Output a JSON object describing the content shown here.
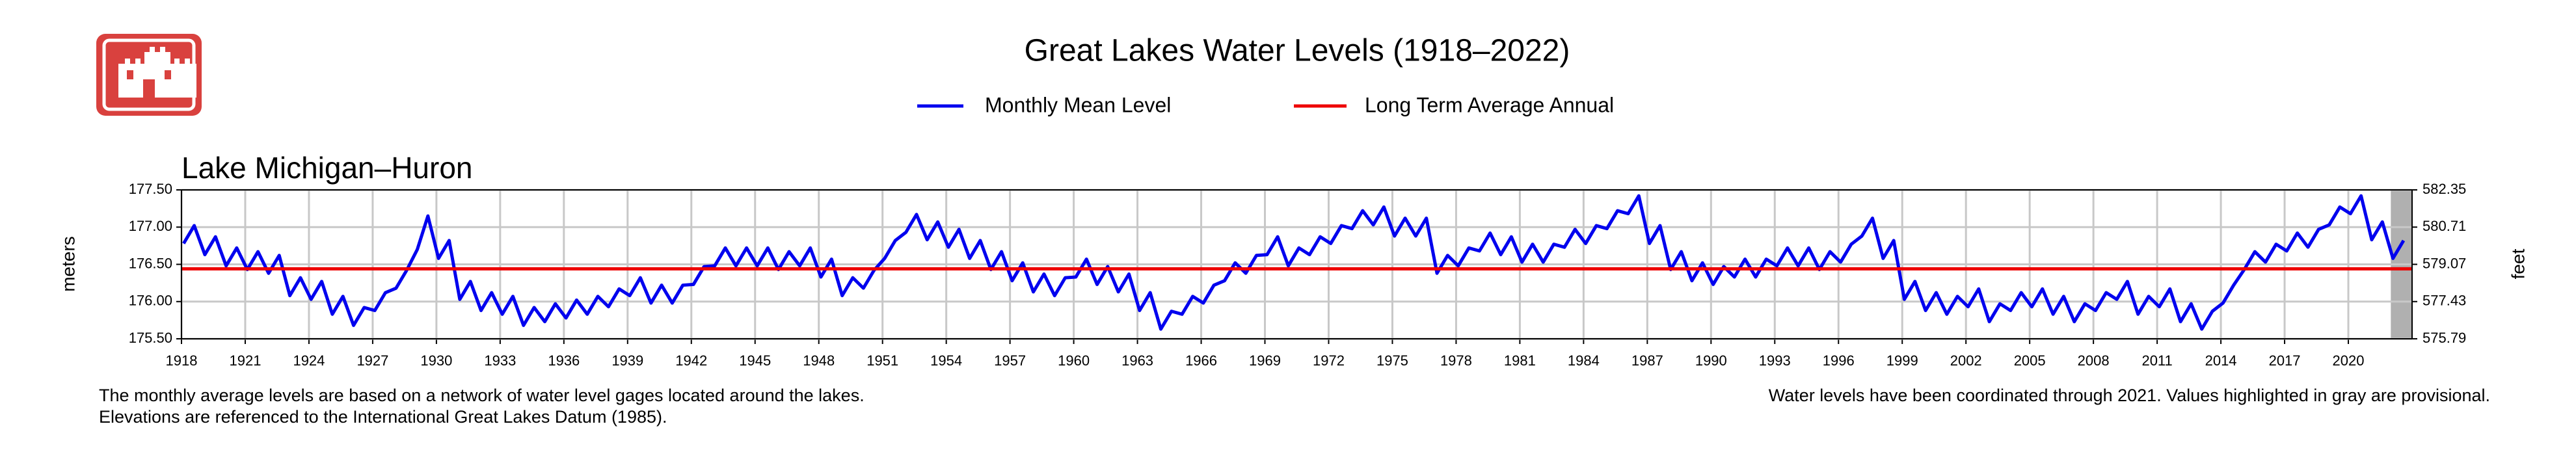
{
  "chart_data": {
    "type": "line",
    "title": "Great Lakes Water Levels (1918–2022)",
    "subtitle": "Lake Michigan–Huron",
    "ylabel": "meters",
    "y2label": "feet",
    "notes_left": [
      "The monthly average levels are based on a network of water level gages located around the lakes.",
      "Elevations are referenced to the International Great Lakes Datum (1985)."
    ],
    "note_right": "Water levels have been coordinated through 2021. Values highlighted in gray are provisional.",
    "xlim": [
      1918,
      2023
    ],
    "xticks": [
      1918,
      1921,
      1924,
      1927,
      1930,
      1933,
      1936,
      1939,
      1942,
      1945,
      1948,
      1951,
      1954,
      1957,
      1960,
      1963,
      1966,
      1969,
      1972,
      1975,
      1978,
      1981,
      1984,
      1987,
      1990,
      1993,
      1996,
      1999,
      2002,
      2005,
      2008,
      2011,
      2014,
      2017,
      2020
    ],
    "ylim": [
      175.5,
      177.5
    ],
    "yticks": [
      {
        "value": 175.5,
        "label": "175.50"
      },
      {
        "value": 176,
        "label": "176.00"
      },
      {
        "value": 176.5,
        "label": "176.50"
      },
      {
        "value": 177,
        "label": "177.00"
      },
      {
        "value": 177.5,
        "label": "177.50"
      }
    ],
    "y2lim": [
      575.79,
      582.35
    ],
    "y2ticks": [
      575.79,
      577.43,
      579.07,
      580.71,
      582.35
    ],
    "grid": true,
    "provisional_xrange": [
      2022,
      2023
    ],
    "reference_line": {
      "name": "Long Term Average Annual",
      "color": "#ee0000",
      "value": 176.44
    },
    "x": [
      1918.1,
      1918.6,
      1919.1,
      1919.6,
      1920.1,
      1920.6,
      1921.1,
      1921.6,
      1922.1,
      1922.6,
      1923.1,
      1923.6,
      1924.1,
      1924.6,
      1925.1,
      1925.6,
      1926.1,
      1926.6,
      1927.1,
      1927.6,
      1928.1,
      1928.6,
      1929.1,
      1929.6,
      1930.1,
      1930.6,
      1931.1,
      1931.6,
      1932.1,
      1932.6,
      1933.1,
      1933.6,
      1934.1,
      1934.6,
      1935.1,
      1935.6,
      1936.1,
      1936.6,
      1937.1,
      1937.6,
      1938.1,
      1938.6,
      1939.1,
      1939.6,
      1940.1,
      1940.6,
      1941.1,
      1941.6,
      1942.1,
      1942.6,
      1943.1,
      1943.6,
      1944.1,
      1944.6,
      1945.1,
      1945.6,
      1946.1,
      1946.6,
      1947.1,
      1947.6,
      1948.1,
      1948.6,
      1949.1,
      1949.6,
      1950.1,
      1950.6,
      1951.1,
      1951.6,
      1952.1,
      1952.6,
      1953.1,
      1953.6,
      1954.1,
      1954.6,
      1955.1,
      1955.6,
      1956.1,
      1956.6,
      1957.1,
      1957.6,
      1958.1,
      1958.6,
      1959.1,
      1959.6,
      1960.1,
      1960.6,
      1961.1,
      1961.6,
      1962.1,
      1962.6,
      1963.1,
      1963.6,
      1964.1,
      1964.6,
      1965.1,
      1965.6,
      1966.1,
      1966.6,
      1967.1,
      1967.6,
      1968.1,
      1968.6,
      1969.1,
      1969.6,
      1970.1,
      1970.6,
      1971.1,
      1971.6,
      1972.1,
      1972.6,
      1973.1,
      1973.6,
      1974.1,
      1974.6,
      1975.1,
      1975.6,
      1976.1,
      1976.6,
      1977.1,
      1977.6,
      1978.1,
      1978.6,
      1979.1,
      1979.6,
      1980.1,
      1980.6,
      1981.1,
      1981.6,
      1982.1,
      1982.6,
      1983.1,
      1983.6,
      1984.1,
      1984.6,
      1985.1,
      1985.6,
      1986.1,
      1986.6,
      1987.1,
      1987.6,
      1988.1,
      1988.6,
      1989.1,
      1989.6,
      1990.1,
      1990.6,
      1991.1,
      1991.6,
      1992.1,
      1992.6,
      1993.1,
      1993.6,
      1994.1,
      1994.6,
      1995.1,
      1995.6,
      1996.1,
      1996.6,
      1997.1,
      1997.6,
      1998.1,
      1998.6,
      1999.1,
      1999.6,
      2000.1,
      2000.6,
      2001.1,
      2001.6,
      2002.1,
      2002.6,
      2003.1,
      2003.6,
      2004.1,
      2004.6,
      2005.1,
      2005.6,
      2006.1,
      2006.6,
      2007.1,
      2007.6,
      2008.1,
      2008.6,
      2009.1,
      2009.6,
      2010.1,
      2010.6,
      2011.1,
      2011.6,
      2012.1,
      2012.6,
      2013.1,
      2013.6,
      2014.1,
      2014.6,
      2015.1,
      2015.6,
      2016.1,
      2016.6,
      2017.1,
      2017.6,
      2018.1,
      2018.6,
      2019.1,
      2019.6,
      2020.1,
      2020.6,
      2021.1,
      2021.6,
      2022.1,
      2022.6
    ],
    "series": [
      {
        "name": "Monthly Mean Level",
        "color": "#0000ee",
        "values": [
          176.78,
          177.02,
          176.63,
          176.87,
          176.48,
          176.72,
          176.43,
          176.67,
          176.38,
          176.62,
          176.08,
          176.32,
          176.03,
          176.27,
          175.83,
          176.07,
          175.68,
          175.92,
          175.88,
          176.12,
          176.18,
          176.42,
          176.7,
          177.15,
          176.58,
          176.82,
          176.03,
          176.27,
          175.88,
          176.12,
          175.83,
          176.07,
          175.68,
          175.92,
          175.73,
          175.97,
          175.78,
          176.02,
          175.83,
          176.07,
          175.93,
          176.17,
          176.08,
          176.32,
          175.98,
          176.22,
          175.98,
          176.22,
          176.23,
          176.47,
          176.48,
          176.72,
          176.48,
          176.72,
          176.48,
          176.72,
          176.43,
          176.67,
          176.48,
          176.72,
          176.33,
          176.57,
          176.08,
          176.32,
          176.18,
          176.42,
          176.58,
          176.82,
          176.93,
          177.17,
          176.83,
          177.07,
          176.73,
          176.97,
          176.58,
          176.82,
          176.43,
          176.67,
          176.28,
          176.52,
          176.13,
          176.37,
          176.08,
          176.32,
          176.33,
          176.57,
          176.23,
          176.47,
          176.13,
          176.37,
          175.88,
          176.12,
          175.63,
          175.87,
          175.83,
          176.07,
          175.98,
          176.22,
          176.28,
          176.52,
          176.38,
          176.62,
          176.63,
          176.87,
          176.48,
          176.72,
          176.63,
          176.87,
          176.78,
          177.02,
          176.98,
          177.22,
          177.03,
          177.27,
          176.88,
          177.12,
          176.88,
          177.12,
          176.38,
          176.62,
          176.48,
          176.72,
          176.68,
          176.92,
          176.63,
          176.87,
          176.53,
          176.77,
          176.53,
          176.77,
          176.73,
          176.97,
          176.78,
          177.02,
          176.98,
          177.22,
          177.18,
          177.42,
          176.78,
          177.02,
          176.43,
          176.67,
          176.28,
          176.52,
          176.23,
          176.47,
          176.33,
          176.57,
          176.33,
          176.57,
          176.48,
          176.72,
          176.48,
          176.72,
          176.43,
          176.67,
          176.53,
          176.77,
          176.88,
          177.12,
          176.58,
          176.82,
          176.03,
          176.27,
          175.88,
          176.12,
          175.83,
          176.07,
          175.93,
          176.17,
          175.73,
          175.97,
          175.88,
          176.12,
          175.93,
          176.17,
          175.83,
          176.07,
          175.73,
          175.97,
          175.88,
          176.12,
          176.03,
          176.27,
          175.83,
          176.07,
          175.93,
          176.17,
          175.73,
          175.97,
          175.63,
          175.87,
          175.98,
          176.22,
          176.43,
          176.67,
          176.53,
          176.77,
          176.68,
          176.92,
          176.73,
          176.97,
          177.03,
          177.27,
          177.18,
          177.42,
          176.83,
          177.07,
          176.58,
          176.82
        ]
      }
    ]
  }
}
